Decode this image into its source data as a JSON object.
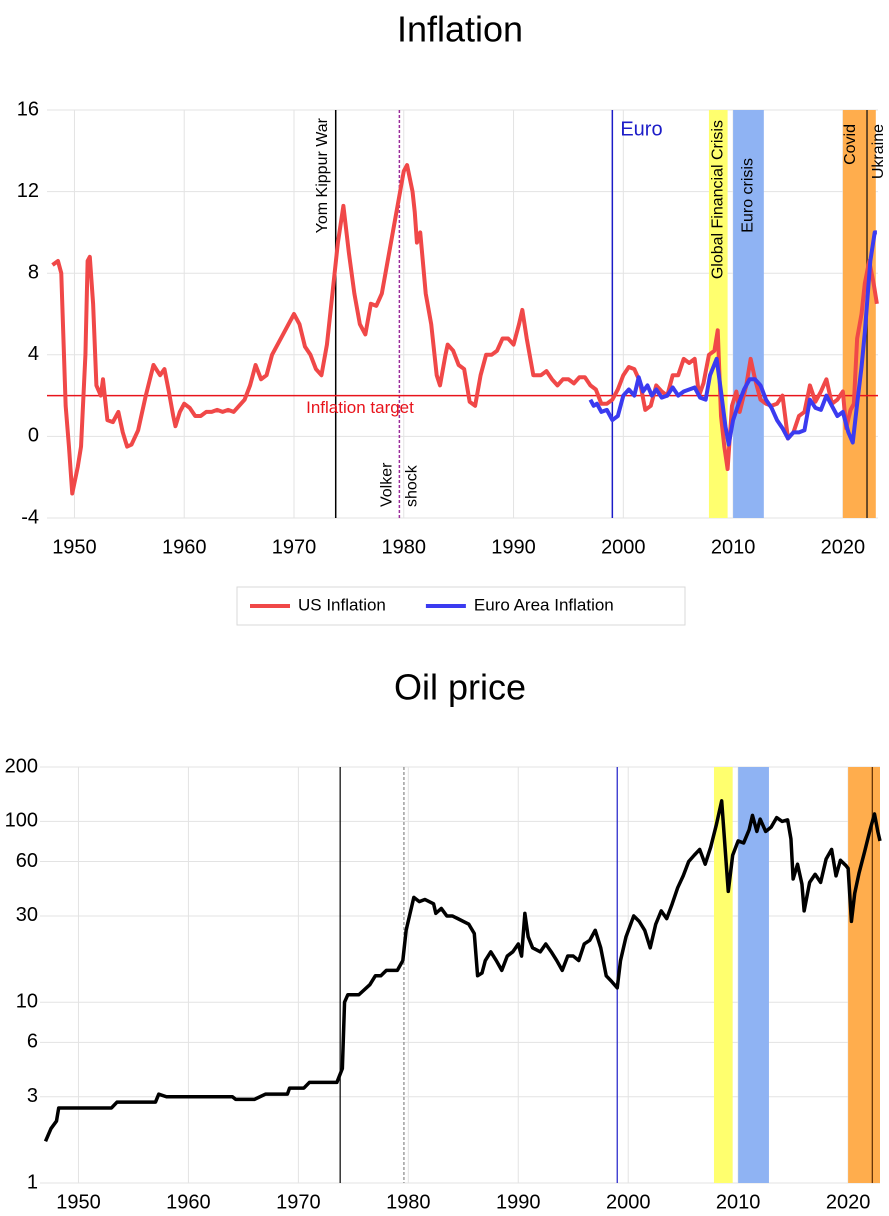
{
  "chart_data": [
    {
      "type": "line",
      "title": "Inflation",
      "xlim": [
        1947.5,
        2023.2
      ],
      "xticks": [
        1950,
        1960,
        1970,
        1980,
        1990,
        2000,
        2010,
        2020
      ],
      "ylim": [
        -4,
        16
      ],
      "yticks": [
        -4,
        0,
        4,
        8,
        12,
        16
      ],
      "grid": true,
      "series": [
        {
          "name": "US Inflation",
          "color": "#f04848",
          "x": [
            1948,
            1948.5,
            1948.8,
            1949.2,
            1949.5,
            1949.8,
            1950.3,
            1950.6,
            1951,
            1951.2,
            1951.4,
            1951.7,
            1952,
            1952.4,
            1952.6,
            1953,
            1953.5,
            1954,
            1954.4,
            1954.8,
            1955.2,
            1955.8,
            1956.5,
            1957.2,
            1957.8,
            1958.2,
            1958.6,
            1959,
            1959.2,
            1959.6,
            1960,
            1960.5,
            1961,
            1961.5,
            1962,
            1962.5,
            1963,
            1963.5,
            1964,
            1964.5,
            1965,
            1965.5,
            1966,
            1966.5,
            1967,
            1967.5,
            1968,
            1969,
            1970,
            1970.5,
            1971,
            1971.5,
            1972,
            1972.5,
            1973,
            1973.5,
            1974,
            1974.5,
            1975,
            1975.5,
            1976,
            1976.5,
            1977,
            1977.5,
            1978,
            1978.5,
            1979,
            1979.5,
            1980,
            1980.3,
            1980.8,
            1981,
            1981.2,
            1981.5,
            1982,
            1982.5,
            1983,
            1983.3,
            1983.8,
            1984,
            1984.5,
            1985,
            1985.5,
            1986,
            1986.5,
            1987,
            1987.5,
            1988,
            1988.5,
            1989,
            1989.5,
            1990,
            1990.5,
            1990.8,
            1991.2,
            1991.8,
            1992.5,
            1993,
            1993.5,
            1994,
            1994.5,
            1995,
            1995.5,
            1996,
            1996.5,
            1997,
            1997.5,
            1998,
            1998.5,
            1999,
            1999.5,
            2000,
            2000.5,
            2001,
            2001.5,
            2002,
            2002.5,
            2003,
            2003.5,
            2004,
            2004.5,
            2005,
            2005.5,
            2006,
            2006.5,
            2006.9,
            2007.3,
            2007.8,
            2008.3,
            2008.6,
            2008.9,
            2009.2,
            2009.5,
            2009.9,
            2010.3,
            2010.6,
            2011.2,
            2011.6,
            2012,
            2012.5,
            2013,
            2013.5,
            2014,
            2014.5,
            2015,
            2015.5,
            2016,
            2016.5,
            2017,
            2017.5,
            2018,
            2018.5,
            2019,
            2019.5,
            2020,
            2020.3,
            2020.7,
            2021,
            2021.3,
            2021.7,
            2022,
            2022.4,
            2022.8,
            2023.1
          ],
          "values": [
            8.4,
            8.6,
            8.0,
            1.5,
            -0.5,
            -2.8,
            -1.5,
            -0.5,
            4,
            8.6,
            8.8,
            6.5,
            2.5,
            2.0,
            2.8,
            0.8,
            0.7,
            1.2,
            0.2,
            -0.5,
            -0.4,
            0.3,
            2.0,
            3.5,
            3.0,
            3.3,
            2.2,
            1.0,
            0.5,
            1.2,
            1.6,
            1.4,
            1.0,
            1.0,
            1.2,
            1.2,
            1.3,
            1.2,
            1.3,
            1.2,
            1.5,
            1.8,
            2.5,
            3.5,
            2.8,
            3.0,
            4.0,
            5.0,
            6.0,
            5.5,
            4.4,
            4.0,
            3.3,
            3.0,
            4.5,
            7.0,
            9.5,
            11.3,
            9.0,
            7.0,
            5.5,
            5.0,
            6.5,
            6.4,
            7.0,
            8.5,
            10.0,
            11.5,
            13.0,
            13.3,
            12.0,
            11.0,
            9.5,
            10.0,
            7.0,
            5.5,
            3.0,
            2.5,
            4.0,
            4.5,
            4.2,
            3.5,
            3.3,
            1.7,
            1.5,
            3.0,
            4.0,
            4.0,
            4.2,
            4.8,
            4.8,
            4.5,
            5.5,
            6.2,
            4.8,
            3.0,
            3.0,
            3.2,
            2.8,
            2.5,
            2.8,
            2.8,
            2.6,
            2.9,
            2.9,
            2.5,
            2.3,
            1.6,
            1.6,
            1.8,
            2.3,
            3.0,
            3.4,
            3.3,
            2.7,
            1.3,
            1.5,
            2.5,
            2.2,
            2.0,
            3.0,
            3.0,
            3.8,
            3.6,
            3.8,
            2.0,
            2.6,
            4.0,
            4.2,
            5.2,
            1.0,
            -0.5,
            -1.6,
            1.5,
            2.2,
            1.2,
            2.5,
            3.8,
            2.8,
            1.8,
            1.6,
            1.5,
            1.6,
            2.0,
            -0.1,
            0.2,
            1.0,
            1.2,
            2.5,
            1.7,
            2.2,
            2.8,
            1.6,
            1.8,
            2.2,
            0.4,
            1.3,
            1.6,
            4.8,
            6.0,
            7.5,
            8.6,
            7.5,
            6.5
          ]
        },
        {
          "name": "Euro Area Inflation",
          "color": "#3b3bf0",
          "x": [
            1997,
            1997.3,
            1997.6,
            1998,
            1998.5,
            1999,
            1999.5,
            2000,
            2000.5,
            2001,
            2001.4,
            2001.8,
            2002.2,
            2002.6,
            2003,
            2003.5,
            2004,
            2004.5,
            2005,
            2005.5,
            2006,
            2006.5,
            2007,
            2007.5,
            2007.9,
            2008.5,
            2008.9,
            2009.3,
            2009.6,
            2010,
            2010.5,
            2011,
            2011.5,
            2012,
            2012.5,
            2013,
            2013.5,
            2014,
            2014.5,
            2015,
            2015.5,
            2016,
            2016.5,
            2017,
            2017.5,
            2018,
            2018.5,
            2019,
            2019.5,
            2020,
            2020.5,
            2020.9,
            2021.3,
            2021.7,
            2022,
            2022.5,
            2022.9,
            2023.1
          ],
          "values": [
            1.8,
            1.5,
            1.6,
            1.2,
            1.3,
            0.8,
            1.0,
            2.0,
            2.3,
            2.0,
            2.9,
            2.2,
            2.5,
            2.0,
            2.3,
            1.9,
            2.0,
            2.4,
            2.0,
            2.2,
            2.3,
            2.4,
            1.9,
            1.8,
            3.0,
            3.8,
            2.2,
            0.5,
            -0.4,
            0.8,
            1.6,
            2.3,
            2.8,
            2.8,
            2.5,
            1.8,
            1.4,
            0.8,
            0.4,
            -0.1,
            0.2,
            0.2,
            0.3,
            1.8,
            1.4,
            1.3,
            2.0,
            1.5,
            1.0,
            1.2,
            0.2,
            -0.3,
            1.6,
            3.4,
            5.1,
            8.6,
            10.0,
            10.0
          ]
        }
      ],
      "hline": {
        "y": 2,
        "color": "#e8141c",
        "label": "Inflation target"
      },
      "vlines": [
        {
          "x": 1973.8,
          "color": "#000000",
          "label": "Yom Kippur War"
        },
        {
          "x": 1979.6,
          "color": "#9b2d9b",
          "dashed": true,
          "labels": [
            "Volker",
            "shock"
          ]
        },
        {
          "x": 1999,
          "color": "#1c1cc8",
          "label": "Euro"
        },
        {
          "x": 2022.2,
          "color": "#3a2a1a",
          "label": "Ukraine"
        }
      ],
      "bands": [
        {
          "x": [
            2007.8,
            2009.5
          ],
          "color": "#ffff6e",
          "label": "Global Financial Crisis"
        },
        {
          "x": [
            2010,
            2012.8
          ],
          "color": "#8fb3f3",
          "label": "Euro crisis"
        },
        {
          "x": [
            2020,
            2023
          ],
          "color": "#ffad4d",
          "label": "Covid"
        }
      ],
      "legend": "bottom"
    },
    {
      "type": "line",
      "title": "Oil price",
      "yscale": "log",
      "xlim": [
        1946.5,
        2022.9
      ],
      "xticks": [
        1950,
        1960,
        1970,
        1980,
        1990,
        2000,
        2010,
        2020
      ],
      "ylim": [
        1,
        200
      ],
      "yticks": [
        1,
        3,
        6,
        10,
        30,
        60,
        100,
        200
      ],
      "grid": true,
      "series": [
        {
          "color": "#000000",
          "x": [
            1947,
            1947.5,
            1948,
            1948.2,
            1953,
            1953.5,
            1957,
            1957.3,
            1958,
            1958.5,
            1964,
            1964.3,
            1966,
            1967,
            1969,
            1969.2,
            1970.5,
            1971,
            1973.5,
            1974,
            1974.2,
            1974.5,
            1975.5,
            1976.5,
            1977,
            1977.5,
            1978,
            1979,
            1979.5,
            1979.8,
            1980.5,
            1981,
            1981.5,
            1982.3,
            1982.5,
            1983,
            1983.5,
            1984,
            1984.5,
            1985.5,
            1986,
            1986.3,
            1986.7,
            1987,
            1987.5,
            1988,
            1988.5,
            1989,
            1989.5,
            1990,
            1990.3,
            1990.6,
            1990.9,
            1991.3,
            1992,
            1992.5,
            1993,
            1993.5,
            1994,
            1994.5,
            1995,
            1995.5,
            1996,
            1996.5,
            1997,
            1997.5,
            1998,
            1998.5,
            1999,
            1999.3,
            1999.8,
            2000.5,
            2001,
            2001.5,
            2002,
            2002.5,
            2003,
            2003.5,
            2004,
            2004.5,
            2005,
            2005.5,
            2006,
            2006.5,
            2007,
            2007.5,
            2008,
            2008.5,
            2008.9,
            2009.1,
            2009.5,
            2010,
            2010.5,
            2011,
            2011.3,
            2011.7,
            2012,
            2012.5,
            2013,
            2013.5,
            2014,
            2014.5,
            2014.8,
            2015,
            2015.4,
            2015.8,
            2016,
            2016.5,
            2017,
            2017.5,
            2018,
            2018.5,
            2018.9,
            2019.3,
            2019.8,
            2020,
            2020.3,
            2020.6,
            2021,
            2021.5,
            2022,
            2022.4,
            2022.7,
            2022.9
          ],
          "values": [
            1.7,
            2.0,
            2.2,
            2.6,
            2.6,
            2.8,
            2.8,
            3.1,
            3.0,
            3.0,
            3.0,
            2.9,
            2.9,
            3.1,
            3.1,
            3.35,
            3.35,
            3.6,
            3.6,
            4.3,
            10,
            11,
            11,
            12.5,
            14,
            14,
            15,
            15,
            17,
            25,
            38,
            36,
            37,
            35,
            31,
            33,
            30,
            30,
            29,
            27,
            24,
            14,
            14.5,
            17,
            19,
            17,
            15,
            18,
            19,
            21,
            18,
            31,
            23,
            20,
            19,
            21,
            19,
            17,
            15,
            18,
            18,
            17,
            21,
            22,
            25,
            20,
            14,
            13,
            12,
            17,
            23,
            30,
            28,
            25,
            20,
            27,
            32,
            29,
            35,
            43,
            50,
            60,
            65,
            70,
            58,
            72,
            95,
            130,
            60,
            41,
            65,
            78,
            76,
            90,
            108,
            88,
            103,
            88,
            93,
            105,
            100,
            102,
            80,
            48,
            58,
            45,
            32,
            46,
            51,
            46,
            62,
            70,
            50,
            61,
            57,
            55,
            28,
            40,
            52,
            68,
            90,
            110,
            88,
            78
          ]
        }
      ],
      "vlines": [
        {
          "x": 1973.8,
          "color": "#000000"
        },
        {
          "x": 1979.6,
          "color": "#888888",
          "dashed": true
        },
        {
          "x": 1999,
          "color": "#1c1cc8"
        },
        {
          "x": 2022.2,
          "color": "#5a2a00"
        }
      ],
      "bands": [
        {
          "x": [
            2007.8,
            2009.5
          ],
          "color": "#ffff6e"
        },
        {
          "x": [
            2010,
            2012.8
          ],
          "color": "#8fb3f3"
        },
        {
          "x": [
            2020,
            2022.9
          ],
          "color": "#ffad4d"
        }
      ]
    }
  ]
}
